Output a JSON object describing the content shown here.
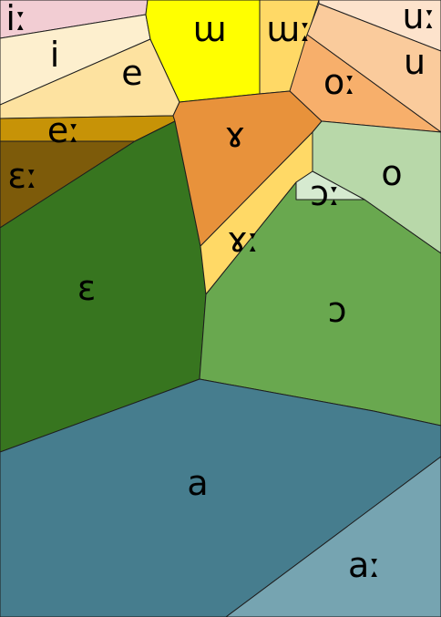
{
  "regions": [
    {
      "id": "i-long",
      "vowel": "iː",
      "color": "#f2cdd3"
    },
    {
      "id": "i",
      "vowel": "i",
      "color": "#fdefce"
    },
    {
      "id": "e",
      "vowel": "e",
      "color": "#fde2a0"
    },
    {
      "id": "e-long",
      "vowel": "eː",
      "color": "#c79307"
    },
    {
      "id": "epsilon-long",
      "vowel": "ɛː",
      "color": "#7d5b0a"
    },
    {
      "id": "epsilon",
      "vowel": "ɛ",
      "color": "#37751f"
    },
    {
      "id": "unrounded-u",
      "vowel": "ɯ",
      "color": "#ffff00"
    },
    {
      "id": "unrounded-u-long",
      "vowel": "ɯː",
      "color": "#ffd966"
    },
    {
      "id": "u-long",
      "vowel": "uː",
      "color": "#fde3cc"
    },
    {
      "id": "u",
      "vowel": "u",
      "color": "#facb9c"
    },
    {
      "id": "o-long",
      "vowel": "oː",
      "color": "#f7af6b"
    },
    {
      "id": "gamma",
      "vowel": "ɤ",
      "color": "#e8923b"
    },
    {
      "id": "gamma-long",
      "vowel": "ɤː",
      "color": "#ffd966"
    },
    {
      "id": "o",
      "vowel": "o",
      "color": "#b8d8a9"
    },
    {
      "id": "open-o-long",
      "vowel": "ɔː",
      "color": "#d6ead0"
    },
    {
      "id": "open-o",
      "vowel": "ɔ",
      "color": "#69a84f"
    },
    {
      "id": "a",
      "vowel": "a",
      "color": "#467d8e"
    },
    {
      "id": "a-long",
      "vowel": "aː",
      "color": "#76a4b1"
    }
  ]
}
